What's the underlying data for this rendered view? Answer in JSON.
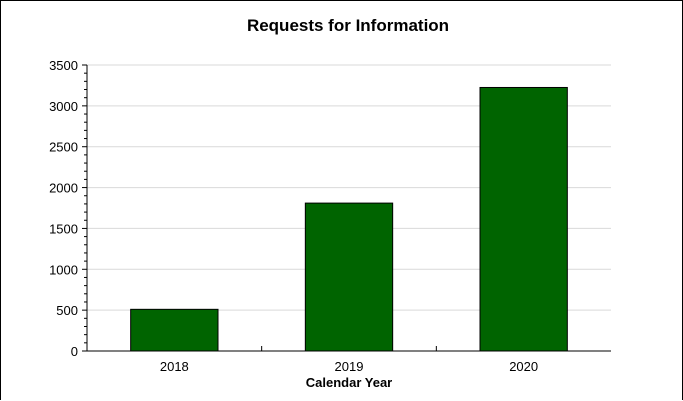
{
  "chart_data": {
    "type": "bar",
    "title": "Requests for Information",
    "xlabel": "Calendar Year",
    "ylabel": "",
    "categories": [
      "2018",
      "2019",
      "2020"
    ],
    "values": [
      510,
      1810,
      3225
    ],
    "ylim": [
      0,
      3500
    ],
    "yticks": [
      "0",
      "500",
      "1000",
      "1500",
      "2000",
      "2500",
      "3000",
      "3500"
    ],
    "grid": true,
    "legend": "none",
    "bar_color": "#006400"
  }
}
